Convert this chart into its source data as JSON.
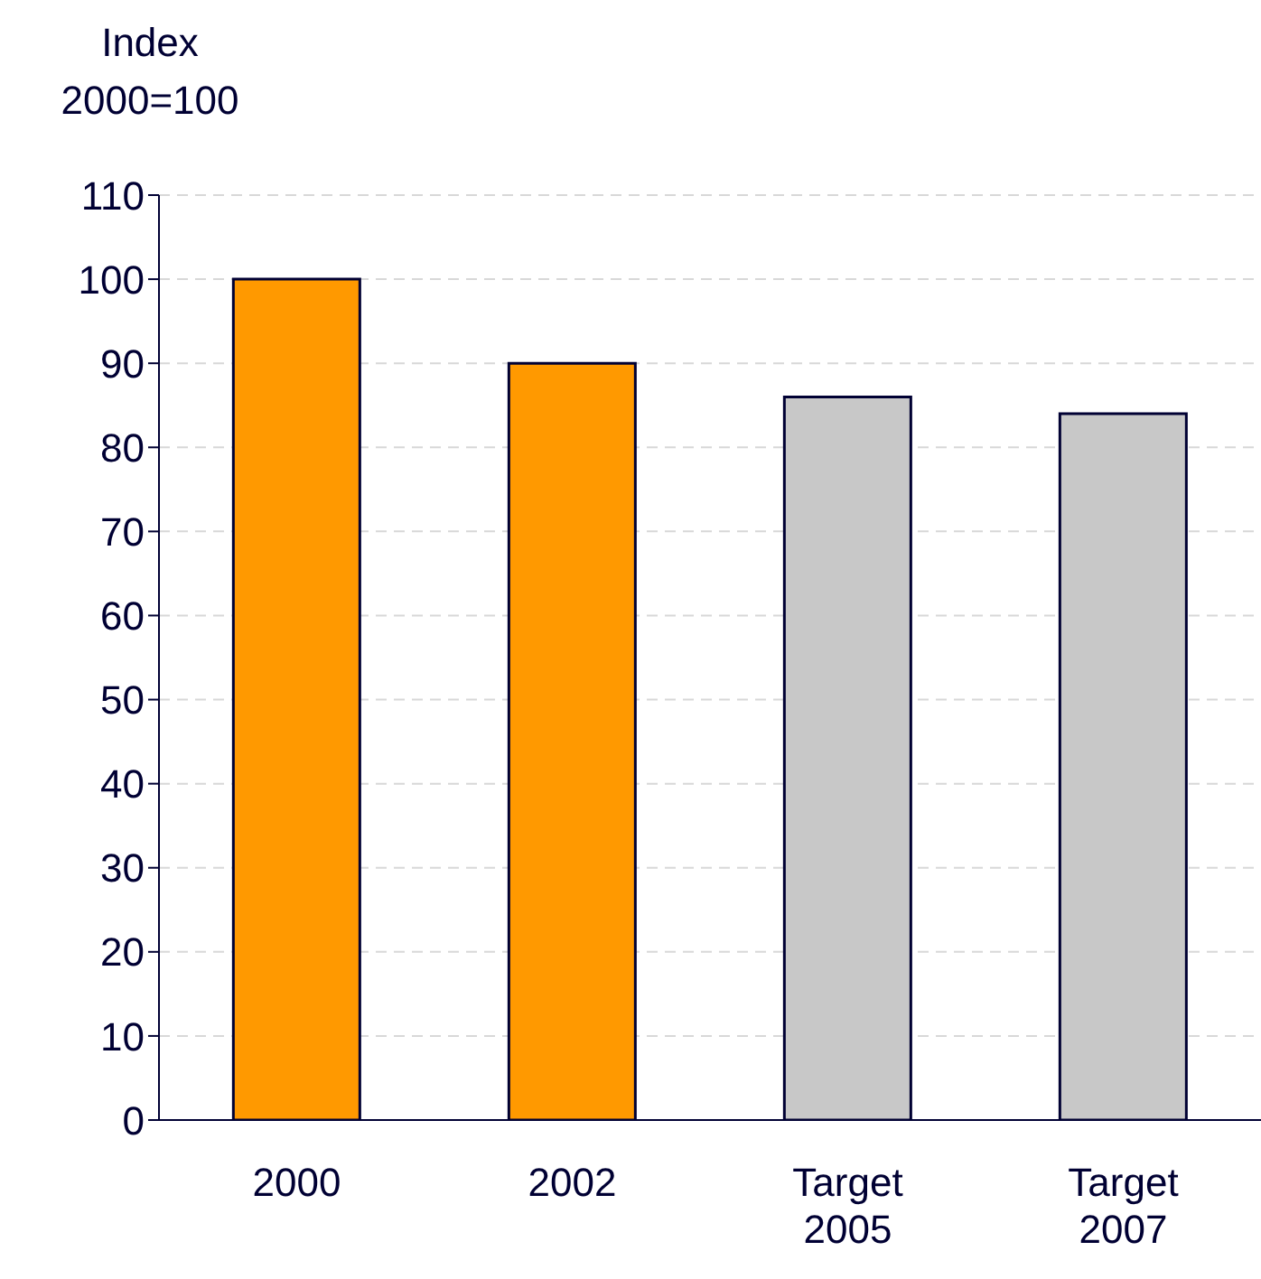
{
  "chart_data": {
    "type": "bar",
    "ylabel": "Index 2000=100",
    "categories": [
      "2000",
      "2002",
      "Target 2005",
      "Target 2007"
    ],
    "values": [
      100,
      90,
      86,
      84
    ],
    "colors": [
      "#ff9900",
      "#ff9900",
      "#c8c8c8",
      "#c8c8c8"
    ],
    "ylim": [
      0,
      110
    ],
    "yticks": [
      0,
      10,
      20,
      30,
      40,
      50,
      60,
      70,
      80,
      90,
      100,
      110
    ],
    "grid": "y"
  }
}
